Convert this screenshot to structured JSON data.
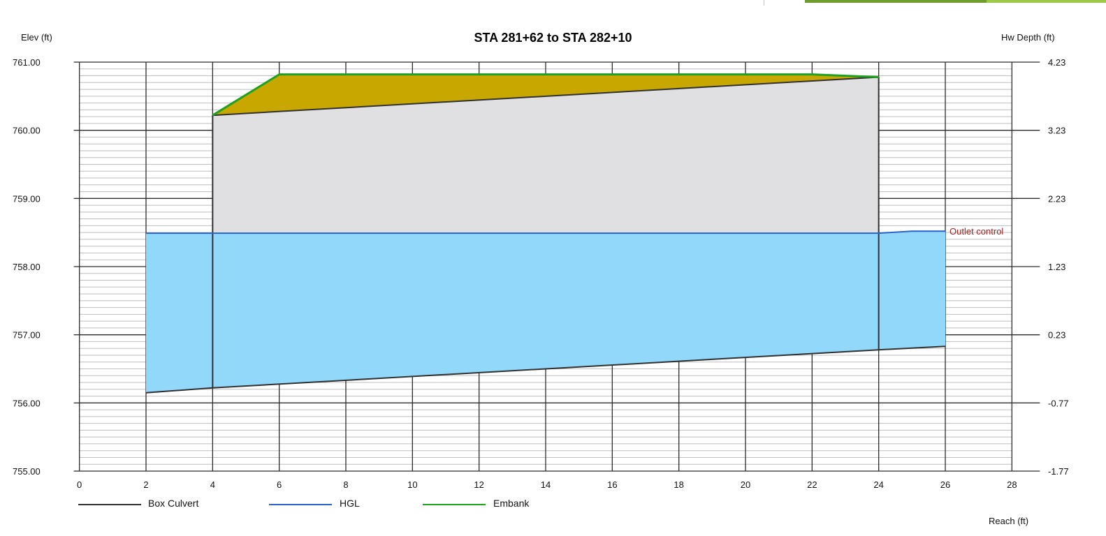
{
  "chart_data": {
    "type": "area",
    "title": "STA 281+62 to STA 282+10",
    "ylabel": "Elev (ft)",
    "y2label": "Hw Depth (ft)",
    "xlabel": "Reach (ft)",
    "xlim": [
      -1,
      29
    ],
    "ylim": [
      755,
      761
    ],
    "x_ticks": [
      "0",
      "2",
      "4",
      "6",
      "8",
      "10",
      "12",
      "14",
      "16",
      "18",
      "20",
      "22",
      "24",
      "26",
      "28"
    ],
    "y_ticks": [
      "761.00",
      "760.00",
      "759.00",
      "758.00",
      "757.00",
      "756.00",
      "755.00"
    ],
    "y2_ticks": [
      "4.23",
      "3.23",
      "2.23",
      "1.23",
      "0.23",
      "-0.77",
      "-1.77"
    ],
    "grid": true,
    "legend_position": "bottom-left",
    "series": [
      {
        "name": "Box Culvert",
        "color": "#303030",
        "invert_x": [
          2,
          4,
          24,
          26
        ],
        "invert_y": [
          756.15,
          756.22,
          756.78,
          756.83
        ],
        "top_x": [
          4,
          24
        ],
        "top_y": [
          760.22,
          760.78
        ],
        "walls": [
          {
            "x": 4,
            "y_bottom": 756.22,
            "y_top": 760.22
          },
          {
            "x": 24,
            "y_bottom": 756.78,
            "y_top": 760.78
          }
        ]
      },
      {
        "name": "HGL",
        "color": "#2a62c9",
        "fill": "#92d8fa",
        "x": [
          2,
          4,
          24,
          25,
          26
        ],
        "y": [
          758.49,
          758.49,
          758.49,
          758.52,
          758.52
        ]
      },
      {
        "name": "Embank",
        "color": "#1ea11e",
        "fill": "#c8a800",
        "x": [
          4,
          6,
          22,
          24
        ],
        "y": [
          760.22,
          760.82,
          760.82,
          760.78
        ]
      }
    ],
    "culvert_fill": "#e0e0e2",
    "annotations": [
      {
        "text": "Outlet control",
        "x": 26,
        "y": 758.52,
        "color": "#a12020"
      }
    ]
  },
  "decor": {
    "top_bar_light": "#9cc94a",
    "top_bar_dark": "#6f9c2e"
  }
}
